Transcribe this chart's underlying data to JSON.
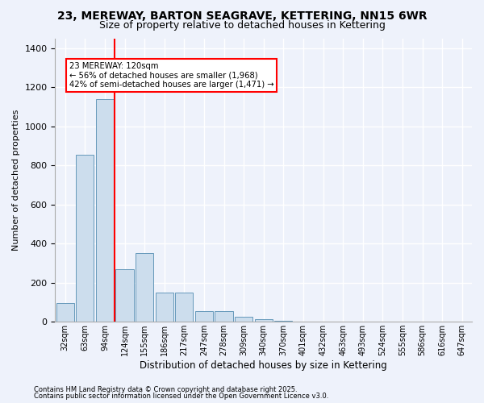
{
  "title1": "23, MEREWAY, BARTON SEAGRAVE, KETTERING, NN15 6WR",
  "title2": "Size of property relative to detached houses in Kettering",
  "xlabel": "Distribution of detached houses by size in Kettering",
  "ylabel": "Number of detached properties",
  "categories": [
    "32sqm",
    "63sqm",
    "94sqm",
    "124sqm",
    "155sqm",
    "186sqm",
    "217sqm",
    "247sqm",
    "278sqm",
    "309sqm",
    "340sqm",
    "370sqm",
    "401sqm",
    "432sqm",
    "463sqm",
    "493sqm",
    "524sqm",
    "555sqm",
    "586sqm",
    "616sqm",
    "647sqm"
  ],
  "values": [
    95,
    855,
    1140,
    270,
    350,
    150,
    150,
    55,
    55,
    25,
    15,
    5,
    0,
    0,
    0,
    0,
    0,
    0,
    0,
    0,
    0
  ],
  "bar_color": "#ccdded",
  "bar_edge_color": "#6699bb",
  "vline_x_index": 3,
  "vline_color": "red",
  "annotation_text": "23 MEREWAY: 120sqm\n← 56% of detached houses are smaller (1,968)\n42% of semi-detached houses are larger (1,471) →",
  "annotation_box_color": "white",
  "annotation_box_edge_color": "red",
  "ylim": [
    0,
    1450
  ],
  "yticks": [
    0,
    200,
    400,
    600,
    800,
    1000,
    1200,
    1400
  ],
  "footer1": "Contains HM Land Registry data © Crown copyright and database right 2025.",
  "footer2": "Contains public sector information licensed under the Open Government Licence v3.0.",
  "bg_color": "#eef2fb",
  "grid_color": "white",
  "title1_fontsize": 10,
  "title2_fontsize": 9,
  "ylabel_fontsize": 8,
  "xlabel_fontsize": 8.5,
  "tick_fontsize": 7,
  "footer_fontsize": 6
}
